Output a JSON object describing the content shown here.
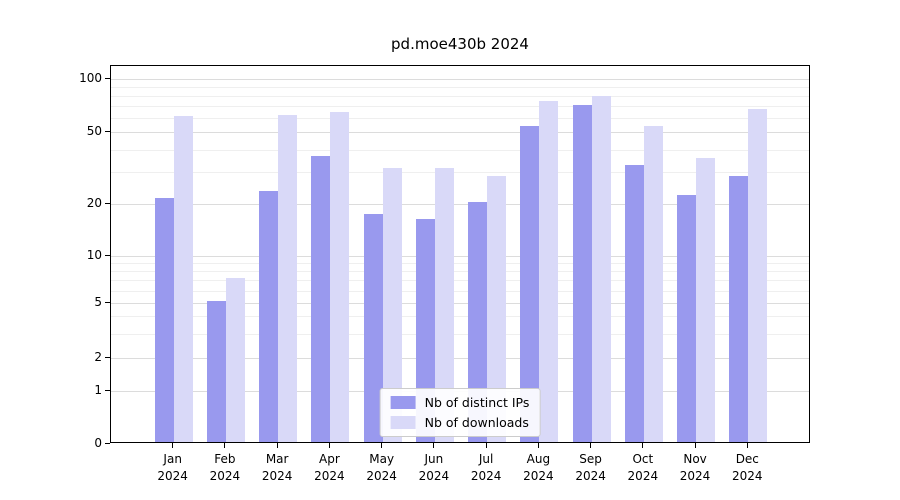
{
  "chart_data": {
    "type": "bar",
    "title": "pd.moe430b 2024",
    "xlabel": "",
    "ylabel": "",
    "year": "2024",
    "categories": [
      "Jan",
      "Feb",
      "Mar",
      "Apr",
      "May",
      "Jun",
      "Jul",
      "Aug",
      "Sep",
      "Oct",
      "Nov",
      "Dec"
    ],
    "series": [
      {
        "name": "Nb of distinct IPs",
        "color": "#9999ee",
        "values": [
          21,
          5,
          23,
          36,
          17,
          16,
          20,
          53,
          69,
          32,
          22,
          28
        ]
      },
      {
        "name": "Nb of downloads",
        "color": "#d9d9f8",
        "values": [
          60,
          7,
          61,
          63,
          31,
          31,
          28,
          73,
          78,
          53,
          35,
          66
        ]
      }
    ],
    "yticks": [
      0,
      1,
      2,
      5,
      10,
      20,
      50,
      100
    ],
    "yscale": "symlog",
    "ylim": [
      0,
      120
    ],
    "grid": true,
    "legend_position": "lower center"
  },
  "colors": {
    "background": "#ffffff",
    "axis": "#000000",
    "grid_major": "#dcdcdc",
    "grid_minor": "#efefef"
  }
}
